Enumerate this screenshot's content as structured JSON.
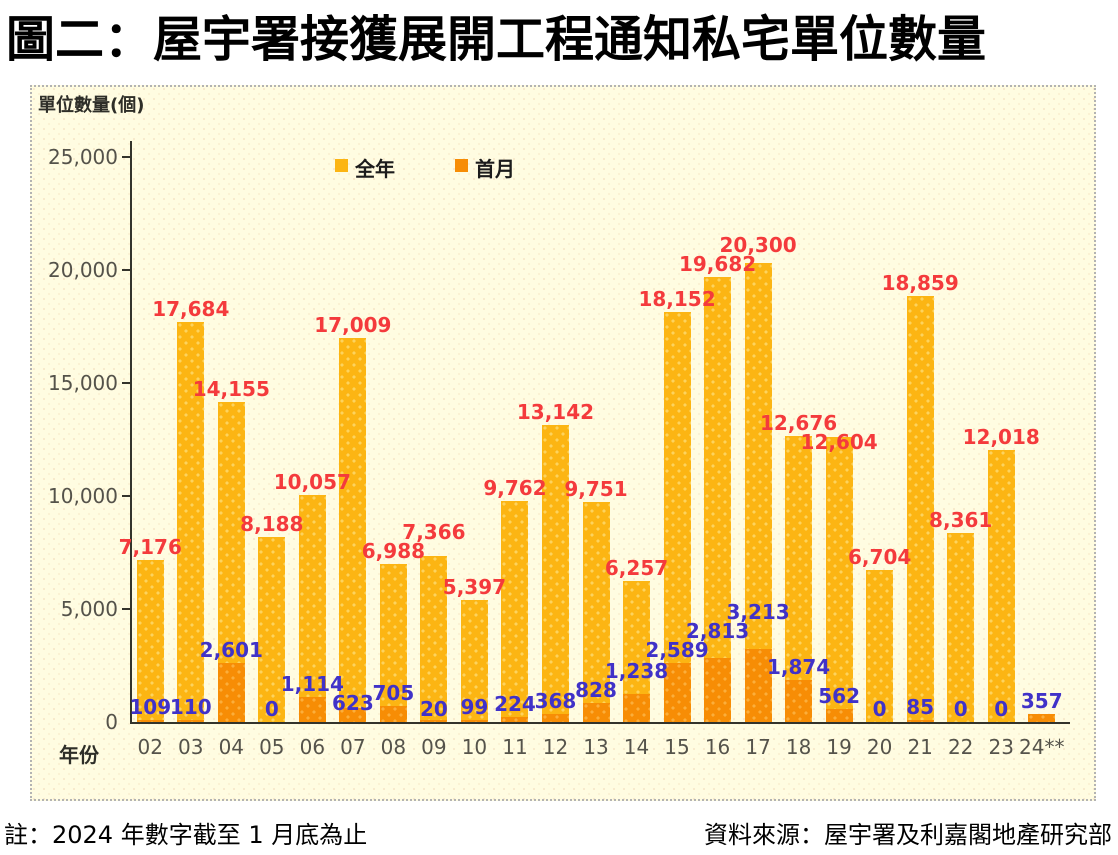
{
  "title": "圖二：屋宇署接獲展開工程通知私宅單位數量",
  "chart_data": {
    "type": "bar",
    "title": "圖二：屋宇署接獲展開工程通知私宅單位數量",
    "ylabel": "單位數量(個)",
    "xlabel": "年份",
    "ylim": [
      0,
      25000
    ],
    "ytick_step": 5000,
    "grid": false,
    "legend_position": "top",
    "categories": [
      "02",
      "03",
      "04",
      "05",
      "06",
      "07",
      "08",
      "09",
      "10",
      "11",
      "12",
      "13",
      "14",
      "15",
      "16",
      "17",
      "18",
      "19",
      "20",
      "21",
      "22",
      "23",
      "24**"
    ],
    "series": [
      {
        "name": "全年",
        "color": "#FCB513",
        "label_color": "#F43A3C",
        "values": [
          7176,
          17684,
          14155,
          8188,
          10057,
          17009,
          6988,
          7366,
          5397,
          9762,
          13142,
          9751,
          6257,
          18152,
          19682,
          20300,
          12676,
          12604,
          6704,
          18859,
          8361,
          12018,
          null
        ]
      },
      {
        "name": "首月",
        "color": "#F78D05",
        "label_color": "#4032C8",
        "values": [
          109,
          110,
          2601,
          0,
          1114,
          623,
          705,
          20,
          99,
          224,
          368,
          828,
          1238,
          2589,
          2813,
          3213,
          1874,
          562,
          0,
          85,
          0,
          0,
          357
        ]
      }
    ]
  },
  "footer": {
    "note": "註：2024 年數字截至 1 月底為止",
    "source": "資料來源：屋宇署及利嘉閣地產研究部"
  }
}
